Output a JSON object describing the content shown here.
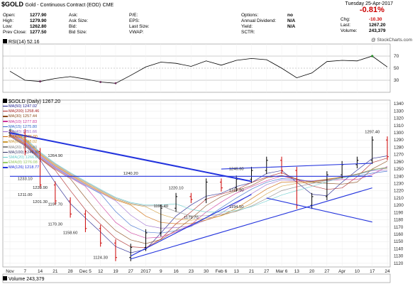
{
  "header": {
    "symbol": "$GOLD",
    "name": "Gold - Continuous Contract (EOD)",
    "exchange": "CME",
    "date": "Tuesday 25-Apr-2017",
    "change_pct": "-0.81%",
    "watermark": "@ StockCharts.com"
  },
  "quote": {
    "left": [
      {
        "label": "Open:",
        "value": "1277.90"
      },
      {
        "label": "High:",
        "value": "1279.90"
      },
      {
        "label": "Low:",
        "value": "1262.80"
      },
      {
        "label": "Prev Close:",
        "value": "1277.50"
      }
    ],
    "mid": [
      {
        "label": "Ask:",
        "value": ""
      },
      {
        "label": "Ask Size:",
        "value": ""
      },
      {
        "label": "Bid:",
        "value": ""
      },
      {
        "label": "Bid Size:",
        "value": ""
      }
    ],
    "mid2": [
      {
        "label": "P/E:",
        "value": ""
      },
      {
        "label": "EPS:",
        "value": ""
      },
      {
        "label": "Last Size:",
        "value": ""
      },
      {
        "label": "VWAP:",
        "value": ""
      }
    ],
    "right1": [
      {
        "label": "Options:",
        "value": "no"
      },
      {
        "label": "Annual Dividend:",
        "value": "N/A"
      },
      {
        "label": "Yield:",
        "value": "N/A"
      },
      {
        "label": "SCTR:",
        "value": ""
      }
    ],
    "right2": [
      {
        "label": "Chg:",
        "value": "-10.30"
      },
      {
        "label": "Last:",
        "value": "1267.20"
      },
      {
        "label": "Volume:",
        "value": "243,379"
      }
    ]
  },
  "rsi_panel": {
    "label": "RSI(14) 52.16",
    "y_ticks": [
      "70",
      "50",
      "30"
    ]
  },
  "price_panel": {
    "label": "$GOLD (Daily) 1267.20",
    "legend": [
      "MA(50) 1247.02",
      "MA(200) 1258.46",
      "MA(30) 1257.44",
      "MA(10) 1277.83",
      "MA(15) 1275.80",
      "MA(40) 1251.66",
      "EMA(8) 1276.00",
      "MA(60) 1248.02",
      "MA(20) 1266.40",
      "MA(100) 1249.31",
      "SMA(20) 1266.83",
      "EMA(8) 1276.08",
      "MA(126) 1218.77"
    ],
    "y_ticks": [
      "1340",
      "1330",
      "1320",
      "1310",
      "1300",
      "1290",
      "1280",
      "1270",
      "1260",
      "1250",
      "1240",
      "1230",
      "1220",
      "1210",
      "1200",
      "1190",
      "1180",
      "1170",
      "1160",
      "1150",
      "1140",
      "1130",
      "1120"
    ],
    "x_ticks": [
      "Nov",
      "7",
      "14",
      "21",
      "28",
      "Dec 5",
      "12",
      "19",
      "27",
      "2017",
      "9",
      "16",
      "23",
      "30",
      "Feb 6",
      "13",
      "21",
      "27",
      "Mar 6",
      "13",
      "20",
      "27",
      "Apr",
      "10",
      "17",
      "24"
    ],
    "annotations": [
      "1297.40",
      "1264.90",
      "1246.60",
      "1233.10",
      "1220.90",
      "1211.00",
      "1197.70",
      "1201.30",
      "1170.30",
      "1158.60",
      "1124.30",
      "1220.10",
      "1195.40",
      "1179.70",
      "1217.50",
      "1194.50",
      "1240.20"
    ]
  },
  "volume_panel": {
    "label": "Volume 243,379"
  },
  "chart_data": {
    "type": "line",
    "title": "$GOLD (Daily) 1267.20",
    "ylim": [
      1115,
      1345
    ],
    "x": [
      "Nov",
      "7",
      "14",
      "21",
      "28",
      "Dec 5",
      "12",
      "19",
      "27",
      "2017",
      "9",
      "16",
      "23",
      "30",
      "Feb 6",
      "13",
      "21",
      "27",
      "Mar 6",
      "13",
      "20",
      "27",
      "Apr",
      "10",
      "17",
      "24"
    ],
    "series": [
      {
        "name": "$GOLD",
        "values": [
          1300,
          1274,
          1228,
          1206,
          1188,
          1168,
          1148,
          1128,
          1142,
          1162,
          1196,
          1212,
          1208,
          1232,
          1224,
          1236,
          1248,
          1262,
          1248,
          1200,
          1212,
          1242,
          1256,
          1262,
          1290,
          1267
        ]
      }
    ],
    "rsi": {
      "ylim": [
        10,
        90
      ],
      "values": [
        45,
        30,
        28,
        33,
        36,
        32,
        27,
        25,
        38,
        52,
        60,
        58,
        53,
        62,
        55,
        63,
        66,
        64,
        50,
        34,
        42,
        61,
        63,
        62,
        70,
        52
      ]
    },
    "annotations": [
      {
        "label": "1297.40",
        "x": "17",
        "y": 1297.4
      },
      {
        "label": "1264.90",
        "x": "21",
        "y": 1264.9
      },
      {
        "label": "1246.60",
        "x": "13",
        "y": 1246.6
      },
      {
        "label": "1233.10",
        "x": "7",
        "y": 1233.1
      },
      {
        "label": "1220.90",
        "x": "14",
        "y": 1220.9
      },
      {
        "label": "1211.00",
        "x": "7",
        "y": 1211.0
      },
      {
        "label": "1197.70",
        "x": "21",
        "y": 1197.7
      },
      {
        "label": "1201.30",
        "x": "14",
        "y": 1201.3
      },
      {
        "label": "1170.30",
        "x": "21",
        "y": 1170.3
      },
      {
        "label": "1158.60",
        "x": "28",
        "y": 1158.6
      },
      {
        "label": "1124.30",
        "x": "12",
        "y": 1124.3
      },
      {
        "label": "1220.10",
        "x": "16",
        "y": 1220.1
      },
      {
        "label": "1195.40",
        "x": "9",
        "y": 1195.4
      },
      {
        "label": "1179.70",
        "x": "23",
        "y": 1179.7
      },
      {
        "label": "1217.50",
        "x": "13",
        "y": 1217.5
      },
      {
        "label": "1194.50",
        "x": "13",
        "y": 1194.5
      },
      {
        "label": "1240.20",
        "x": "27",
        "y": 1240.2
      }
    ],
    "grid": true,
    "legend_position": "top-left"
  },
  "colors": {
    "price_up": "#000000",
    "price_down": "#cc0000",
    "trendline": "#2233dd",
    "down_text": "#cc0000",
    "rsi_line": "#000000",
    "rsi_fill_low": "#6a2a5a",
    "rsi_fill_high": "#2a8a2a"
  }
}
